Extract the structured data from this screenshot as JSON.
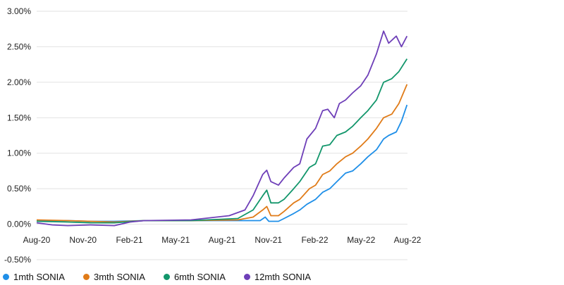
{
  "chart_data": {
    "type": "line",
    "ylabel": "",
    "xlabel": "",
    "ylim": [
      -0.5,
      3.0
    ],
    "y_ticks": [
      3.0,
      2.5,
      2.0,
      1.5,
      1.0,
      0.5,
      0.0,
      -0.5
    ],
    "y_tick_labels": [
      "3.00%",
      "2.50%",
      "2.00%",
      "1.50%",
      "1.00%",
      "0.50%",
      "0.00%",
      "-0.50%"
    ],
    "x_range": [
      "2020-08-01",
      "2022-08-01"
    ],
    "x_tick_labels": [
      "Aug-20",
      "Nov-20",
      "Feb-21",
      "May-21",
      "Aug-21",
      "Nov-21",
      "Feb-22",
      "May-22",
      "Aug-22"
    ],
    "grid": true,
    "legend_position": "bottom-left",
    "series": [
      {
        "name": "1mth SONIA",
        "color": "#1f8fe8",
        "points": [
          [
            "2020-08-01",
            0.05
          ],
          [
            "2020-10-01",
            0.05
          ],
          [
            "2020-11-15",
            0.04
          ],
          [
            "2021-01-01",
            0.04
          ],
          [
            "2021-03-01",
            0.05
          ],
          [
            "2021-06-01",
            0.05
          ],
          [
            "2021-09-01",
            0.05
          ],
          [
            "2021-10-15",
            0.05
          ],
          [
            "2021-10-25",
            0.1
          ],
          [
            "2021-11-01",
            0.04
          ],
          [
            "2021-11-20",
            0.04
          ],
          [
            "2021-12-01",
            0.08
          ],
          [
            "2021-12-20",
            0.15
          ],
          [
            "2022-01-01",
            0.2
          ],
          [
            "2022-01-15",
            0.28
          ],
          [
            "2022-02-01",
            0.35
          ],
          [
            "2022-02-15",
            0.45
          ],
          [
            "2022-03-01",
            0.5
          ],
          [
            "2022-03-15",
            0.6
          ],
          [
            "2022-04-01",
            0.72
          ],
          [
            "2022-04-15",
            0.75
          ],
          [
            "2022-05-01",
            0.85
          ],
          [
            "2022-05-15",
            0.95
          ],
          [
            "2022-06-01",
            1.05
          ],
          [
            "2022-06-15",
            1.2
          ],
          [
            "2022-06-25",
            1.25
          ],
          [
            "2022-07-10",
            1.3
          ],
          [
            "2022-07-20",
            1.45
          ],
          [
            "2022-07-31",
            1.68
          ]
        ]
      },
      {
        "name": "3mth SONIA",
        "color": "#e07b18",
        "points": [
          [
            "2020-08-01",
            0.06
          ],
          [
            "2020-10-01",
            0.05
          ],
          [
            "2020-11-15",
            0.04
          ],
          [
            "2021-01-01",
            0.03
          ],
          [
            "2021-03-01",
            0.05
          ],
          [
            "2021-06-01",
            0.05
          ],
          [
            "2021-09-01",
            0.06
          ],
          [
            "2021-10-01",
            0.1
          ],
          [
            "2021-10-20",
            0.2
          ],
          [
            "2021-10-28",
            0.25
          ],
          [
            "2021-11-05",
            0.12
          ],
          [
            "2021-11-20",
            0.12
          ],
          [
            "2021-12-01",
            0.18
          ],
          [
            "2021-12-20",
            0.3
          ],
          [
            "2022-01-01",
            0.35
          ],
          [
            "2022-01-20",
            0.5
          ],
          [
            "2022-02-01",
            0.55
          ],
          [
            "2022-02-15",
            0.7
          ],
          [
            "2022-03-01",
            0.75
          ],
          [
            "2022-03-15",
            0.85
          ],
          [
            "2022-04-01",
            0.95
          ],
          [
            "2022-04-15",
            1.0
          ],
          [
            "2022-05-01",
            1.1
          ],
          [
            "2022-05-15",
            1.2
          ],
          [
            "2022-06-01",
            1.35
          ],
          [
            "2022-06-15",
            1.5
          ],
          [
            "2022-07-01",
            1.55
          ],
          [
            "2022-07-15",
            1.7
          ],
          [
            "2022-07-31",
            1.97
          ]
        ]
      },
      {
        "name": "6mth SONIA",
        "color": "#12966b",
        "points": [
          [
            "2020-08-01",
            0.04
          ],
          [
            "2020-10-01",
            0.03
          ],
          [
            "2020-11-15",
            0.02
          ],
          [
            "2021-01-01",
            0.02
          ],
          [
            "2021-03-01",
            0.05
          ],
          [
            "2021-06-01",
            0.05
          ],
          [
            "2021-09-01",
            0.08
          ],
          [
            "2021-10-01",
            0.2
          ],
          [
            "2021-10-20",
            0.4
          ],
          [
            "2021-10-28",
            0.48
          ],
          [
            "2021-11-05",
            0.3
          ],
          [
            "2021-11-20",
            0.3
          ],
          [
            "2021-12-01",
            0.35
          ],
          [
            "2021-12-20",
            0.5
          ],
          [
            "2022-01-01",
            0.6
          ],
          [
            "2022-01-20",
            0.8
          ],
          [
            "2022-02-01",
            0.85
          ],
          [
            "2022-02-15",
            1.1
          ],
          [
            "2022-03-01",
            1.12
          ],
          [
            "2022-03-15",
            1.25
          ],
          [
            "2022-04-01",
            1.3
          ],
          [
            "2022-04-15",
            1.38
          ],
          [
            "2022-05-01",
            1.5
          ],
          [
            "2022-05-15",
            1.6
          ],
          [
            "2022-06-01",
            1.75
          ],
          [
            "2022-06-15",
            2.0
          ],
          [
            "2022-07-01",
            2.05
          ],
          [
            "2022-07-15",
            2.15
          ],
          [
            "2022-07-31",
            2.33
          ]
        ]
      },
      {
        "name": "12mth SONIA",
        "color": "#6e3fb8",
        "points": [
          [
            "2020-08-01",
            0.02
          ],
          [
            "2020-09-01",
            -0.01
          ],
          [
            "2020-10-01",
            -0.02
          ],
          [
            "2020-11-15",
            -0.01
          ],
          [
            "2021-01-01",
            -0.02
          ],
          [
            "2021-02-01",
            0.03
          ],
          [
            "2021-03-01",
            0.05
          ],
          [
            "2021-06-01",
            0.06
          ],
          [
            "2021-08-15",
            0.12
          ],
          [
            "2021-09-15",
            0.2
          ],
          [
            "2021-10-01",
            0.4
          ],
          [
            "2021-10-20",
            0.7
          ],
          [
            "2021-10-28",
            0.76
          ],
          [
            "2021-11-05",
            0.6
          ],
          [
            "2021-11-20",
            0.55
          ],
          [
            "2021-12-01",
            0.65
          ],
          [
            "2021-12-20",
            0.8
          ],
          [
            "2022-01-01",
            0.85
          ],
          [
            "2022-01-15",
            1.2
          ],
          [
            "2022-02-01",
            1.35
          ],
          [
            "2022-02-15",
            1.6
          ],
          [
            "2022-02-25",
            1.62
          ],
          [
            "2022-03-10",
            1.5
          ],
          [
            "2022-03-20",
            1.7
          ],
          [
            "2022-04-01",
            1.75
          ],
          [
            "2022-04-15",
            1.85
          ],
          [
            "2022-05-01",
            1.95
          ],
          [
            "2022-05-15",
            2.1
          ],
          [
            "2022-06-01",
            2.4
          ],
          [
            "2022-06-15",
            2.72
          ],
          [
            "2022-06-25",
            2.55
          ],
          [
            "2022-07-10",
            2.65
          ],
          [
            "2022-07-20",
            2.5
          ],
          [
            "2022-07-31",
            2.65
          ]
        ]
      }
    ]
  }
}
